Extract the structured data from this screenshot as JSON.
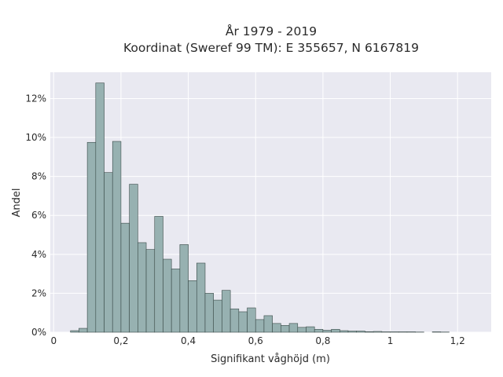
{
  "chart_data": {
    "type": "bar",
    "title_lines": [
      "År 1979 - 2019",
      "Koordinat (Sweref 99 TM): E 355657, N 6167819"
    ],
    "xlabel": "Signifikant våghöjd (m)",
    "ylabel": "Andel",
    "xlim": [
      -0.01,
      1.3
    ],
    "ylim": [
      0,
      0.1335
    ],
    "bin_width": 0.025,
    "bin_start": 0.05,
    "values": [
      0.0008,
      0.002,
      0.0975,
      0.128,
      0.082,
      0.098,
      0.056,
      0.076,
      0.046,
      0.0425,
      0.0595,
      0.0375,
      0.0325,
      0.045,
      0.0265,
      0.0355,
      0.02,
      0.0165,
      0.0215,
      0.012,
      0.0105,
      0.0125,
      0.0065,
      0.0085,
      0.0045,
      0.0035,
      0.0045,
      0.0025,
      0.0028,
      0.0015,
      0.001,
      0.0015,
      0.0008,
      0.0006,
      0.0006,
      0.0003,
      0.0004,
      0.0002,
      0.0002,
      0.0002,
      0.0002,
      0.0001,
      0.0,
      0.0002,
      0.0001
    ],
    "x_ticks": [
      {
        "value": 0,
        "label": "0"
      },
      {
        "value": 0.2,
        "label": "0,2"
      },
      {
        "value": 0.4,
        "label": "0,4"
      },
      {
        "value": 0.6,
        "label": "0,6"
      },
      {
        "value": 0.8,
        "label": "0,8"
      },
      {
        "value": 1.0,
        "label": "1"
      },
      {
        "value": 1.2,
        "label": "1,2"
      }
    ],
    "y_ticks": [
      {
        "value": 0,
        "label": "0%"
      },
      {
        "value": 0.02,
        "label": "2%"
      },
      {
        "value": 0.04,
        "label": "4%"
      },
      {
        "value": 0.06,
        "label": "6%"
      },
      {
        "value": 0.08,
        "label": "8%"
      },
      {
        "value": 0.1,
        "label": "10%"
      },
      {
        "value": 0.12,
        "label": "12%"
      }
    ],
    "grid": true,
    "colors": {
      "plot_background": "#e9e9f1",
      "grid": "#ffffff",
      "bar_fill": "#97b1b1",
      "bar_stroke": "#3a4a48"
    }
  }
}
